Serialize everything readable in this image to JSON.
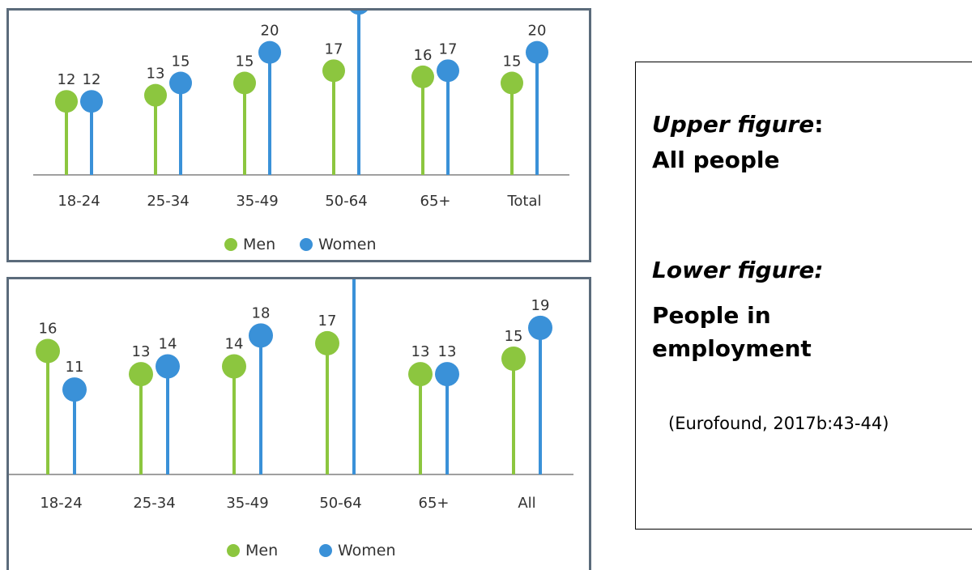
{
  "chart_data": [
    {
      "type": "lollipop",
      "categories": [
        "18-24",
        "25-34",
        "35-49",
        "50-64",
        "65+",
        "Total"
      ],
      "series": [
        {
          "name": "Men",
          "values": [
            12,
            13,
            15,
            17,
            16,
            15
          ]
        },
        {
          "name": "Women",
          "values": [
            12,
            15,
            20,
            28,
            17,
            20
          ]
        }
      ],
      "ylim": [
        0,
        30
      ],
      "grid": false,
      "legend_position": "bottom-center"
    },
    {
      "type": "lollipop",
      "categories": [
        "18-24",
        "25-34",
        "35-49",
        "50-64",
        "65+",
        "All"
      ],
      "series": [
        {
          "name": "Men",
          "values": [
            16,
            13,
            14,
            17,
            13,
            15
          ]
        },
        {
          "name": "Women",
          "values": [
            11,
            14,
            18,
            27,
            13,
            19
          ]
        }
      ],
      "ylim": [
        0,
        30
      ],
      "grid": false,
      "legend_position": "bottom-center"
    }
  ],
  "colors": {
    "men": "#8cc63f",
    "women": "#3a91d8",
    "axis": "#808080"
  },
  "caption": {
    "upper_title_italic": "Upper figure",
    "upper_title_colon": ":",
    "upper_subtitle": "All people",
    "lower_title": "Lower figure:",
    "lower_subtitle": "People in employment",
    "source": "(Eurofound, 2017b:43-44)"
  }
}
